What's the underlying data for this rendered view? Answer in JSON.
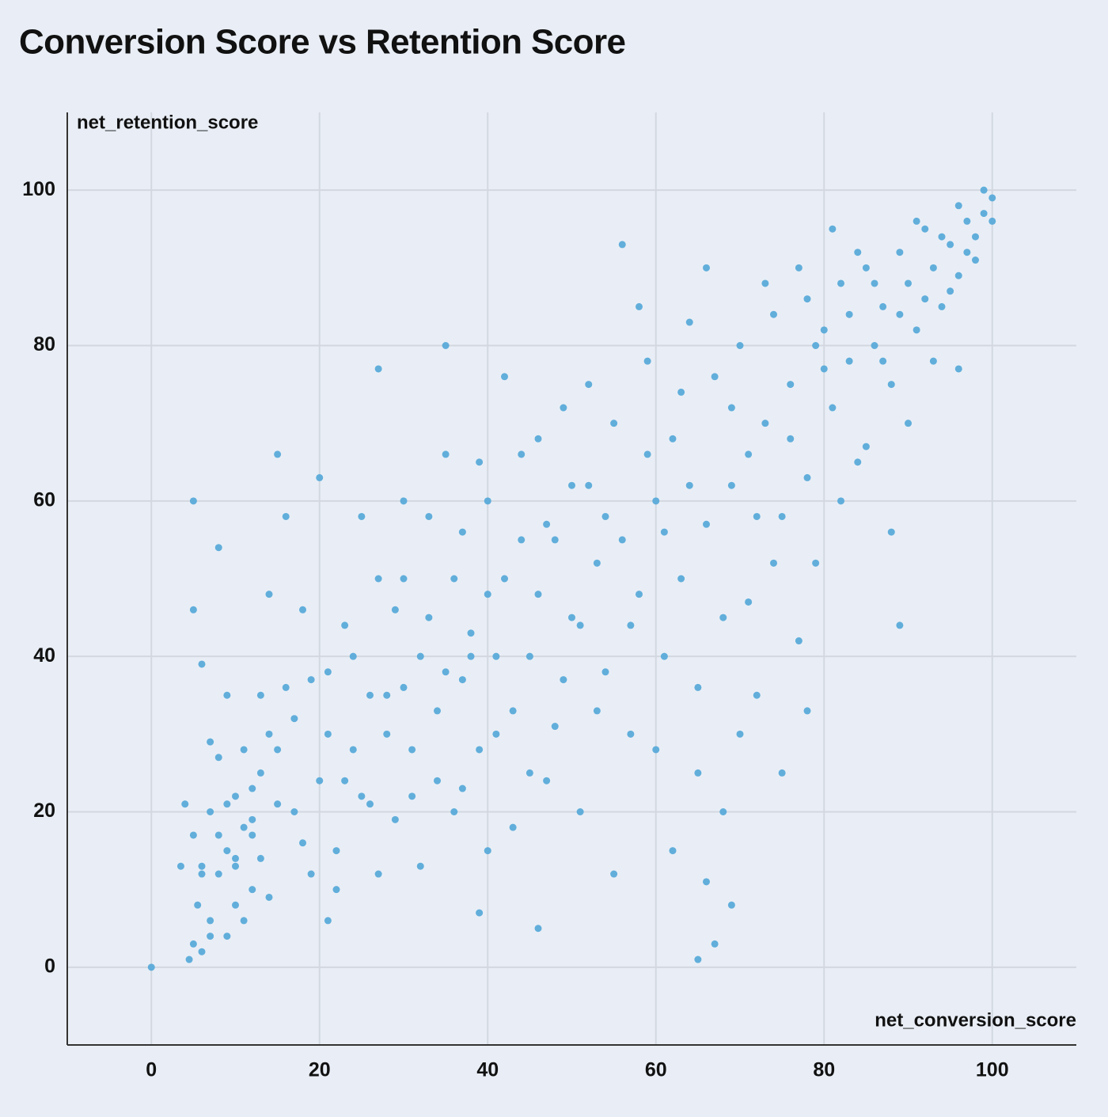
{
  "chart_data": {
    "type": "scatter",
    "title": "Conversion Score vs Retention Score",
    "x_label": "net_conversion_score",
    "y_label": "net_retention_score",
    "color": "#5aaad9",
    "xlim": [
      -10,
      110
    ],
    "ylim": [
      -10,
      110
    ],
    "xticks": [
      0,
      20,
      40,
      60,
      80,
      100
    ],
    "yticks": [
      0,
      20,
      40,
      60,
      80,
      100
    ],
    "grid": true,
    "x": [
      0,
      4,
      4.5,
      5,
      5,
      5.5,
      6,
      6,
      7,
      7,
      8,
      8,
      9,
      9,
      10,
      10,
      11,
      12,
      12,
      13,
      14,
      14,
      15,
      16,
      17,
      18,
      19,
      20,
      21,
      21,
      22,
      23,
      24,
      25,
      26,
      27,
      28,
      29,
      30,
      30,
      31,
      32,
      33,
      34,
      35,
      36,
      37,
      37,
      38,
      39,
      40,
      40,
      41,
      42,
      43,
      44,
      45,
      46,
      47,
      48,
      49,
      50,
      51,
      52,
      53,
      54,
      55,
      56,
      57,
      58,
      59,
      60,
      61,
      62,
      63,
      64,
      65,
      66,
      67,
      67,
      68,
      69,
      70,
      71,
      72,
      73,
      74,
      75,
      76,
      77,
      78,
      79,
      80,
      81,
      82,
      83,
      84,
      85,
      86,
      87,
      88,
      89,
      90,
      91,
      92,
      93,
      94,
      95,
      96,
      97,
      98,
      99,
      100,
      100,
      99,
      98,
      97,
      96,
      95,
      94,
      93,
      92,
      91,
      90,
      89,
      88,
      87,
      86,
      85,
      84,
      83,
      82,
      81,
      80,
      79,
      78,
      77,
      76,
      75,
      74,
      73,
      72,
      71,
      70,
      69,
      68,
      66,
      65,
      64,
      63,
      62,
      61,
      60,
      59,
      58,
      57,
      56,
      55,
      54,
      53,
      52,
      51,
      50,
      49,
      48,
      47,
      46,
      45,
      44,
      43,
      42,
      41,
      40,
      39,
      38,
      37,
      36,
      35,
      34,
      33,
      32,
      31,
      30,
      29,
      28,
      27,
      26,
      25,
      24,
      23,
      22,
      21,
      20,
      19,
      18,
      17,
      16,
      15,
      14,
      13,
      12,
      11,
      10,
      9,
      8,
      7,
      6,
      5,
      5,
      6,
      7,
      8,
      9,
      10,
      11,
      12,
      13,
      15,
      3.5,
      27,
      35,
      39,
      46,
      65,
      66,
      69,
      78,
      89,
      96
    ],
    "values": [
      0,
      21,
      1,
      3,
      17,
      8,
      2,
      13,
      6,
      20,
      12,
      27,
      15,
      4,
      14,
      22,
      18,
      10,
      17,
      25,
      9,
      30,
      28,
      36,
      20,
      16,
      37,
      24,
      6,
      30,
      15,
      24,
      40,
      22,
      35,
      12,
      30,
      19,
      36,
      50,
      28,
      13,
      45,
      24,
      38,
      20,
      37,
      56,
      43,
      28,
      60,
      15,
      40,
      50,
      33,
      66,
      25,
      48,
      57,
      31,
      72,
      45,
      20,
      62,
      52,
      38,
      70,
      55,
      30,
      48,
      78,
      60,
      40,
      68,
      50,
      83,
      25,
      57,
      3,
      76,
      45,
      62,
      80,
      66,
      35,
      70,
      84,
      58,
      75,
      90,
      63,
      80,
      82,
      72,
      88,
      78,
      65,
      90,
      80,
      85,
      75,
      92,
      88,
      82,
      95,
      90,
      85,
      93,
      89,
      96,
      94,
      97,
      99,
      96,
      100,
      91,
      92,
      98,
      87,
      94,
      78,
      86,
      96,
      70,
      84,
      56,
      78,
      88,
      67,
      92,
      84,
      60,
      95,
      77,
      52,
      86,
      42,
      68,
      25,
      52,
      88,
      58,
      47,
      30,
      72,
      20,
      90,
      36,
      62,
      74,
      15,
      56,
      28,
      66,
      85,
      44,
      93,
      12,
      58,
      33,
      75,
      44,
      62,
      37,
      55,
      24,
      68,
      40,
      55,
      18,
      76,
      30,
      48,
      65,
      40,
      23,
      50,
      66,
      33,
      58,
      40,
      22,
      60,
      46,
      35,
      50,
      21,
      58,
      28,
      44,
      10,
      38,
      63,
      12,
      46,
      32,
      58,
      21,
      48,
      35,
      23,
      28,
      8,
      35,
      54,
      29,
      39,
      46,
      60,
      12,
      4,
      17,
      21,
      13,
      6,
      19,
      14,
      66,
      13,
      77,
      80,
      7,
      5,
      1,
      11,
      8,
      33,
      44,
      77
    ]
  }
}
